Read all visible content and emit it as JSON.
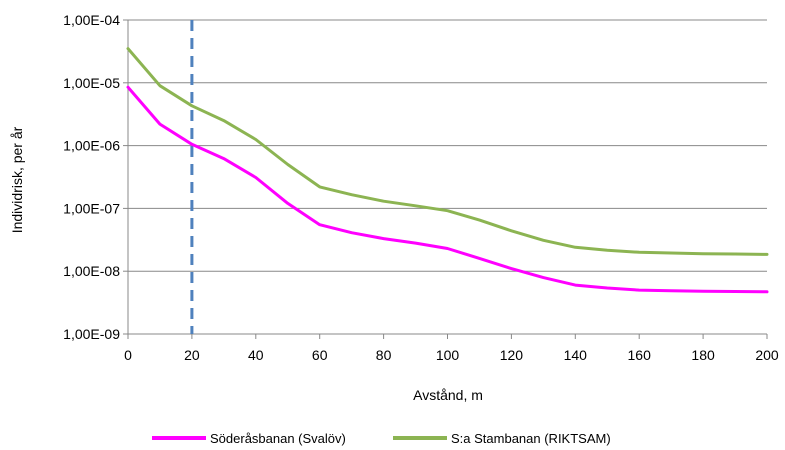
{
  "chart_data": {
    "type": "line",
    "title": "",
    "xlabel": "Avstånd, m",
    "ylabel": "Individrisk, per år",
    "xlim": [
      0,
      200
    ],
    "ylim": [
      1e-09,
      0.0001
    ],
    "yscale": "log",
    "x_ticks": [
      "0",
      "20",
      "40",
      "60",
      "80",
      "100",
      "120",
      "140",
      "160",
      "180",
      "200"
    ],
    "y_ticks": [
      "1,00E-09",
      "1,00E-08",
      "1,00E-07",
      "1,00E-06",
      "1,00E-05",
      "1,00E-04"
    ],
    "grid": "horizontal",
    "legend_position": "bottom",
    "reference_line": {
      "x": 20,
      "style": "dashed",
      "color": "#4F81BD"
    },
    "series": [
      {
        "name": "Söderåsbanan (Svalöv)",
        "color": "#FF00FF",
        "x": [
          0,
          10,
          20,
          30,
          40,
          50,
          60,
          70,
          80,
          90,
          100,
          110,
          120,
          130,
          140,
          150,
          160,
          170,
          180,
          190,
          200
        ],
        "y": [
          8.5e-06,
          2.2e-06,
          1.05e-06,
          6.2e-07,
          3.1e-07,
          1.2e-07,
          5.5e-08,
          4.1e-08,
          3.3e-08,
          2.8e-08,
          2.3e-08,
          1.6e-08,
          1.1e-08,
          7.9e-09,
          6e-09,
          5.4e-09,
          5e-09,
          4.9e-09,
          4.8e-09,
          4.75e-09,
          4.7e-09
        ]
      },
      {
        "name": "S:a Stambanan (RIKTSAM)",
        "color": "#8CB452",
        "x": [
          0,
          10,
          20,
          30,
          40,
          50,
          60,
          70,
          80,
          90,
          100,
          110,
          120,
          130,
          140,
          150,
          160,
          170,
          180,
          190,
          200
        ],
        "y": [
          3.5e-05,
          9e-06,
          4.3e-06,
          2.5e-06,
          1.25e-06,
          5e-07,
          2.2e-07,
          1.65e-07,
          1.3e-07,
          1.1e-07,
          9.2e-08,
          6.5e-08,
          4.4e-08,
          3.1e-08,
          2.4e-08,
          2.15e-08,
          2e-08,
          1.95e-08,
          1.9e-08,
          1.88e-08,
          1.85e-08
        ]
      }
    ]
  }
}
